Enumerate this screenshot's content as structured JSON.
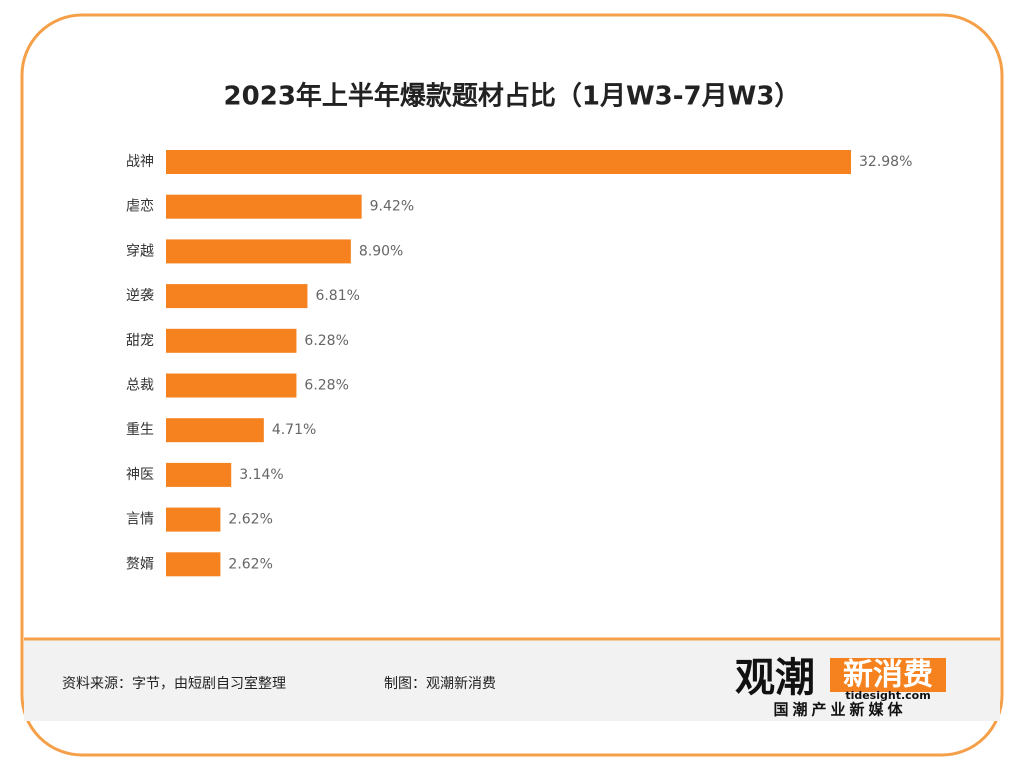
{
  "chart_data": {
    "type": "bar",
    "title": "2023年上半年爆款题材占比（1月W3-7月W3）",
    "categories": [
      "战神",
      "虐恋",
      "穿越",
      "逆袭",
      "甜宠",
      "总裁",
      "重生",
      "神医",
      "言情",
      "赘婿"
    ],
    "values": [
      32.98,
      9.42,
      8.9,
      6.81,
      6.28,
      6.28,
      4.71,
      3.14,
      2.62,
      2.62
    ],
    "value_labels": [
      "32.98%",
      "9.42%",
      "8.90%",
      "6.81%",
      "6.28%",
      "6.28%",
      "4.71%",
      "3.14%",
      "2.62%",
      "2.62%"
    ],
    "color": "#f5821f"
  },
  "footer": {
    "source": "资料来源：字节，由短剧自习室整理",
    "credit": "制图：观潮新消费",
    "logo": {
      "main": "观潮",
      "highlight": "新消费",
      "url": "tidesight.com",
      "tagline": "国潮产业新媒体"
    }
  }
}
